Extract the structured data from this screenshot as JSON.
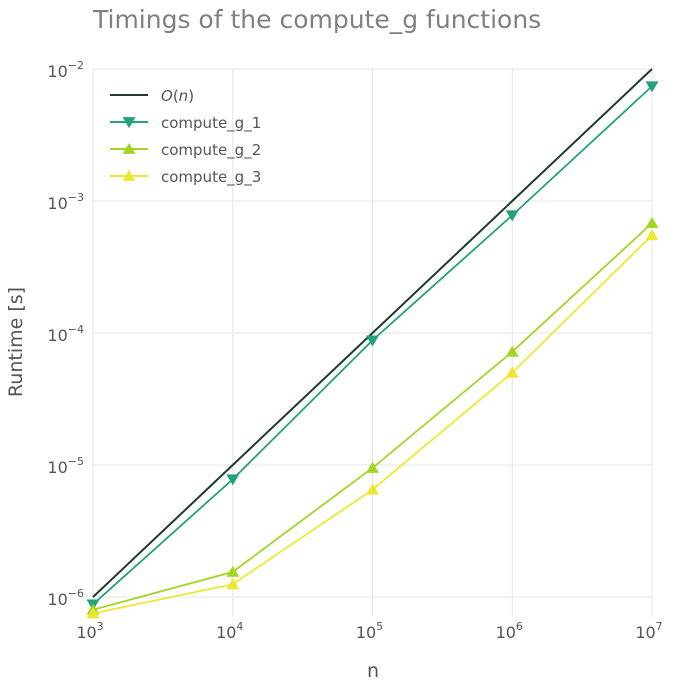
{
  "chart_data": {
    "type": "line",
    "title": "Timings of the compute_g functions",
    "xlabel": "n",
    "ylabel": "Runtime [s]",
    "xscale": "log",
    "yscale": "log",
    "xlim": [
      1000,
      10000000
    ],
    "ylim": [
      7e-07,
      0.01
    ],
    "x": [
      1000,
      10000,
      100000,
      1000000,
      10000000
    ],
    "x_tick_labels": [
      {
        "value": 1000,
        "base": "10",
        "exp": "3"
      },
      {
        "value": 10000,
        "base": "10",
        "exp": "4"
      },
      {
        "value": 100000,
        "base": "10",
        "exp": "5"
      },
      {
        "value": 1000000,
        "base": "10",
        "exp": "6"
      },
      {
        "value": 10000000,
        "base": "10",
        "exp": "7"
      }
    ],
    "y_tick_labels": [
      {
        "value": 1e-06,
        "base": "10",
        "exp": "−6"
      },
      {
        "value": 1e-05,
        "base": "10",
        "exp": "−5"
      },
      {
        "value": 0.0001,
        "base": "10",
        "exp": "−4"
      },
      {
        "value": 0.001,
        "base": "10",
        "exp": "−3"
      },
      {
        "value": 0.01,
        "base": "10",
        "exp": "−2"
      }
    ],
    "grid": true,
    "legend_position": "top-left",
    "series": [
      {
        "name": "O(n)",
        "name_parts": {
          "italic": "O",
          "open": "(",
          "italic_arg": "n",
          "close": ")"
        },
        "color": "#1f3b2a",
        "marker": "none",
        "values": [
          1e-06,
          1e-05,
          0.0001,
          0.001,
          0.01
        ]
      },
      {
        "name": "compute_g_1",
        "color": "#21a27a",
        "marker": "triangle-down",
        "values": [
          8.8e-07,
          7.8e-06,
          8.8e-05,
          0.00078,
          0.0074
        ]
      },
      {
        "name": "compute_g_2",
        "color": "#a3d624",
        "marker": "triangle-up",
        "values": [
          8e-07,
          1.55e-06,
          9.5e-06,
          7.2e-05,
          0.00068
        ]
      },
      {
        "name": "compute_g_3",
        "color": "#ece832",
        "marker": "triangle-up",
        "values": [
          7.5e-07,
          1.25e-06,
          6.5e-06,
          5e-05,
          0.00055
        ]
      }
    ]
  }
}
